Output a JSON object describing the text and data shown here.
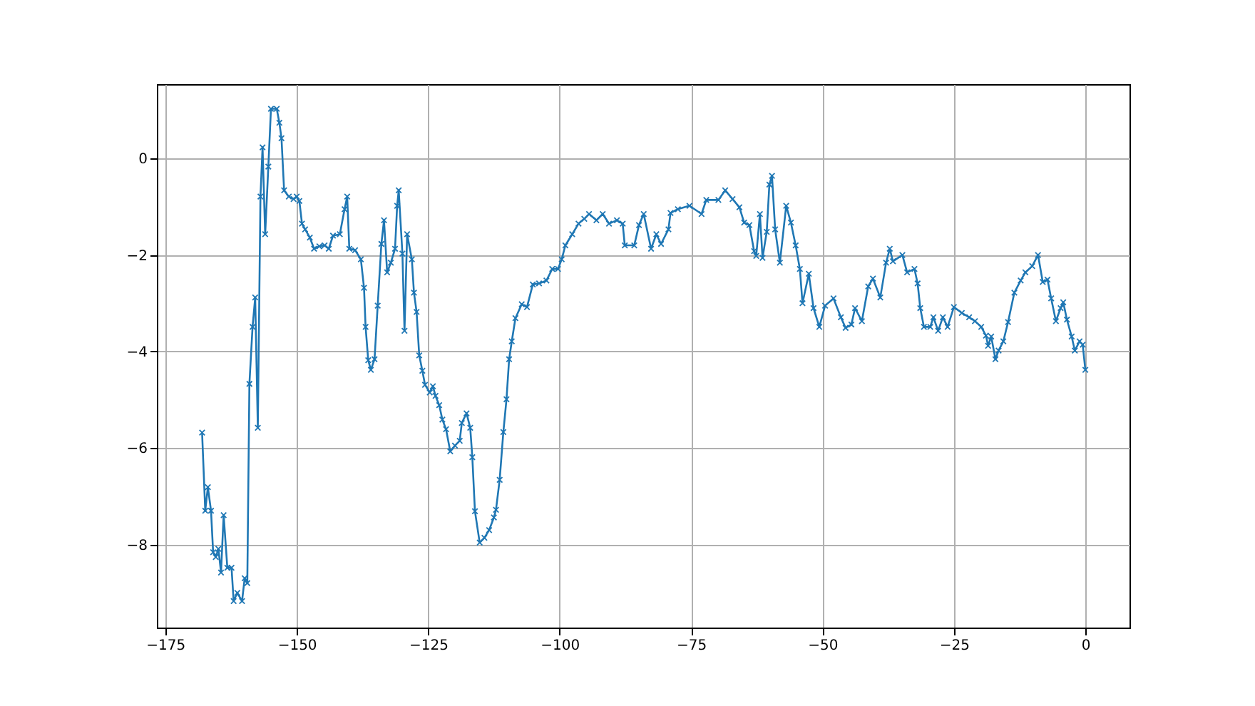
{
  "chart_data": {
    "type": "line",
    "marker": "cross",
    "line_style": "solid",
    "grid": true,
    "xlim": [
      -176.6,
      8.4
    ],
    "ylim": [
      -9.72,
      1.54
    ],
    "xticks": [
      {
        "value": -175,
        "label": "−175"
      },
      {
        "value": -150,
        "label": "−150"
      },
      {
        "value": -125,
        "label": "−125"
      },
      {
        "value": -100,
        "label": "−100"
      },
      {
        "value": -75,
        "label": "−75"
      },
      {
        "value": -50,
        "label": "−50"
      },
      {
        "value": -25,
        "label": "−25"
      },
      0
    ],
    "yticks": [
      {
        "value": -8,
        "label": "−8"
      },
      {
        "value": -6,
        "label": "−6"
      },
      {
        "value": -4,
        "label": "−4"
      },
      {
        "value": -2,
        "label": "−2"
      },
      0
    ],
    "series": [
      {
        "color": "#1f77b4",
        "x": [
          -168.0,
          -167.4,
          -166.9,
          -166.3,
          -165.9,
          -165.4,
          -164.9,
          -164.4,
          -163.9,
          -163.2,
          -162.4,
          -162.0,
          -161.3,
          -160.4,
          -159.9,
          -159.4,
          -159.0,
          -158.4,
          -157.9,
          -157.4,
          -156.9,
          -156.5,
          -156.0,
          -155.4,
          -154.9,
          -153.8,
          -153.3,
          -152.9,
          -152.4,
          -151.5,
          -150.6,
          -150.0,
          -149.5,
          -149.0,
          -148.4,
          -147.5,
          -146.7,
          -145.7,
          -144.7,
          -143.9,
          -143.1,
          -141.8,
          -140.9,
          -140.4,
          -140.0,
          -138.9,
          -137.8,
          -137.2,
          -136.9,
          -136.4,
          -135.9,
          -135.2,
          -134.6,
          -133.9,
          -133.4,
          -132.8,
          -132.1,
          -131.3,
          -130.9,
          -130.6,
          -129.9,
          -129.5,
          -129.0,
          -128.1,
          -127.7,
          -127.2,
          -126.7,
          -126.1,
          -125.6,
          -124.7,
          -124.1,
          -123.6,
          -122.9,
          -122.3,
          -121.6,
          -120.8,
          -119.9,
          -119.0,
          -118.6,
          -117.7,
          -117.0,
          -116.6,
          -116.1,
          -115.2,
          -114.3,
          -113.4,
          -112.5,
          -112.1,
          -111.4,
          -110.7,
          -110.1,
          -109.6,
          -109.1,
          -108.4,
          -107.2,
          -106.2,
          -105.1,
          -103.9,
          -102.5,
          -101.4,
          -100.3,
          -99.6,
          -98.9,
          -97.6,
          -96.4,
          -95.3,
          -94.4,
          -93.0,
          -91.8,
          -90.6,
          -89.1,
          -88.0,
          -87.6,
          -85.8,
          -84.9,
          -84.0,
          -82.6,
          -81.6,
          -80.7,
          -79.3,
          -78.9,
          -77.5,
          -75.3,
          -73.0,
          -72.1,
          -69.8,
          -68.5,
          -67.1,
          -65.8,
          -64.9,
          -63.9,
          -63.0,
          -62.6,
          -61.9,
          -61.4,
          -60.6,
          -60.1,
          -59.6,
          -59.0,
          -58.1,
          -56.9,
          -56.0,
          -55.1,
          -54.3,
          -53.8,
          -52.6,
          -51.7,
          -50.6,
          -49.5,
          -47.9,
          -46.5,
          -45.6,
          -44.5,
          -43.8,
          -42.5,
          -41.3,
          -40.4,
          -39.0,
          -37.9,
          -37.2,
          -36.6,
          -34.8,
          -33.9,
          -32.5,
          -31.9,
          -31.4,
          -30.7,
          -29.5,
          -28.9,
          -28.0,
          -27.1,
          -26.2,
          -25.0,
          -23.5,
          -22.1,
          -21.0,
          -19.8,
          -18.9,
          -18.5,
          -17.9,
          -17.1,
          -16.5,
          -15.6,
          -14.7,
          -13.5,
          -12.3,
          -11.4,
          -10.1,
          -9.0,
          -8.1,
          -7.2,
          -6.5,
          -5.6,
          -4.7,
          -4.2,
          -3.5,
          -2.6,
          -2.0,
          -1.1,
          -0.5,
          0.0
        ],
        "values": [
          -5.68,
          -7.3,
          -6.81,
          -7.3,
          -8.16,
          -8.26,
          -8.09,
          -8.58,
          -7.39,
          -8.48,
          -8.48,
          -9.17,
          -9.0,
          -9.17,
          -8.7,
          -8.8,
          -4.67,
          -3.49,
          -2.88,
          -5.58,
          -0.79,
          0.23,
          -1.57,
          -0.17,
          1.03,
          1.03,
          0.74,
          0.42,
          -0.66,
          -0.79,
          -0.84,
          -0.79,
          -0.88,
          -1.35,
          -1.47,
          -1.64,
          -1.87,
          -1.82,
          -1.8,
          -1.87,
          -1.6,
          -1.57,
          -1.05,
          -0.79,
          -1.87,
          -1.9,
          -2.09,
          -2.68,
          -3.49,
          -4.18,
          -4.38,
          -4.16,
          -3.05,
          -1.77,
          -1.28,
          -2.36,
          -2.16,
          -1.87,
          -0.98,
          -0.66,
          -1.97,
          -3.57,
          -1.57,
          -2.09,
          -2.78,
          -3.18,
          -4.08,
          -4.4,
          -4.69,
          -4.85,
          -4.72,
          -4.92,
          -5.11,
          -5.41,
          -5.61,
          -6.07,
          -5.95,
          -5.85,
          -5.48,
          -5.28,
          -5.58,
          -6.19,
          -7.31,
          -7.96,
          -7.86,
          -7.7,
          -7.44,
          -7.28,
          -6.66,
          -5.67,
          -4.99,
          -4.16,
          -3.79,
          -3.31,
          -3.02,
          -3.08,
          -2.61,
          -2.59,
          -2.53,
          -2.29,
          -2.29,
          -2.09,
          -1.8,
          -1.57,
          -1.35,
          -1.25,
          -1.15,
          -1.28,
          -1.15,
          -1.35,
          -1.28,
          -1.35,
          -1.8,
          -1.8,
          -1.38,
          -1.15,
          -1.87,
          -1.57,
          -1.77,
          -1.47,
          -1.13,
          -1.05,
          -0.98,
          -1.15,
          -0.86,
          -0.86,
          -0.66,
          -0.84,
          -1.01,
          -1.33,
          -1.38,
          -1.92,
          -2.02,
          -1.15,
          -2.06,
          -1.52,
          -0.54,
          -0.36,
          -1.47,
          -2.16,
          -0.98,
          -1.33,
          -1.8,
          -2.29,
          -3.0,
          -2.39,
          -3.1,
          -3.49,
          -3.05,
          -2.9,
          -3.29,
          -3.51,
          -3.44,
          -3.1,
          -3.37,
          -2.65,
          -2.49,
          -2.88,
          -2.16,
          -1.87,
          -2.13,
          -2.0,
          -2.36,
          -2.29,
          -2.59,
          -3.1,
          -3.49,
          -3.49,
          -3.29,
          -3.57,
          -3.29,
          -3.49,
          -3.08,
          -3.2,
          -3.29,
          -3.37,
          -3.49,
          -3.67,
          -3.88,
          -3.69,
          -4.16,
          -3.98,
          -3.79,
          -3.39,
          -2.78,
          -2.53,
          -2.36,
          -2.23,
          -2.0,
          -2.56,
          -2.51,
          -2.9,
          -3.37,
          -3.1,
          -2.98,
          -3.34,
          -3.69,
          -3.98,
          -3.79,
          -3.86,
          -4.38
        ]
      }
    ]
  }
}
